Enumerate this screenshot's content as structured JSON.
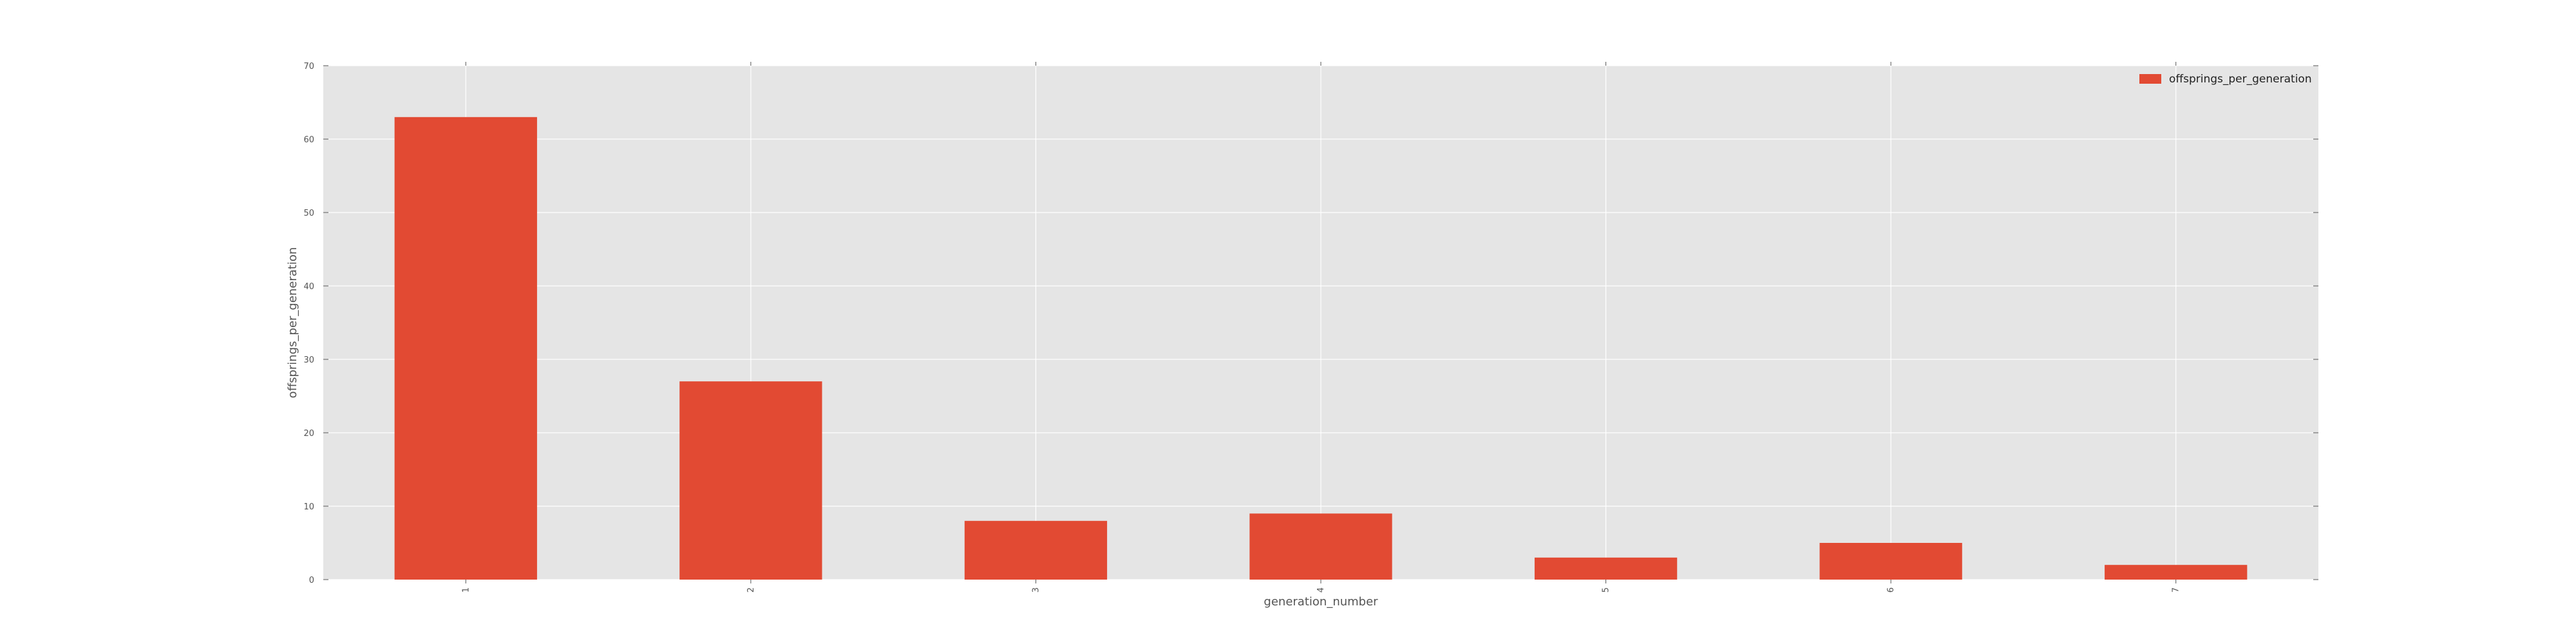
{
  "chart_data": {
    "type": "bar",
    "categories": [
      "1",
      "2",
      "3",
      "4",
      "5",
      "6",
      "7"
    ],
    "series": [
      {
        "name": "offsprings_per_generation",
        "values": [
          63,
          27,
          8,
          9,
          3,
          5,
          2
        ]
      }
    ],
    "title": "",
    "xlabel": "generation_number",
    "ylabel": "offsprings_per_generation",
    "ylim": [
      0,
      70
    ],
    "yticks": [
      "0",
      "10",
      "20",
      "30",
      "40",
      "50",
      "60",
      "70"
    ],
    "grid": true,
    "legend": "top-right",
    "colors": {
      "bar": "#E24A33",
      "plot_background": "#E5E5E5",
      "grid": "#FFFFFF"
    }
  }
}
